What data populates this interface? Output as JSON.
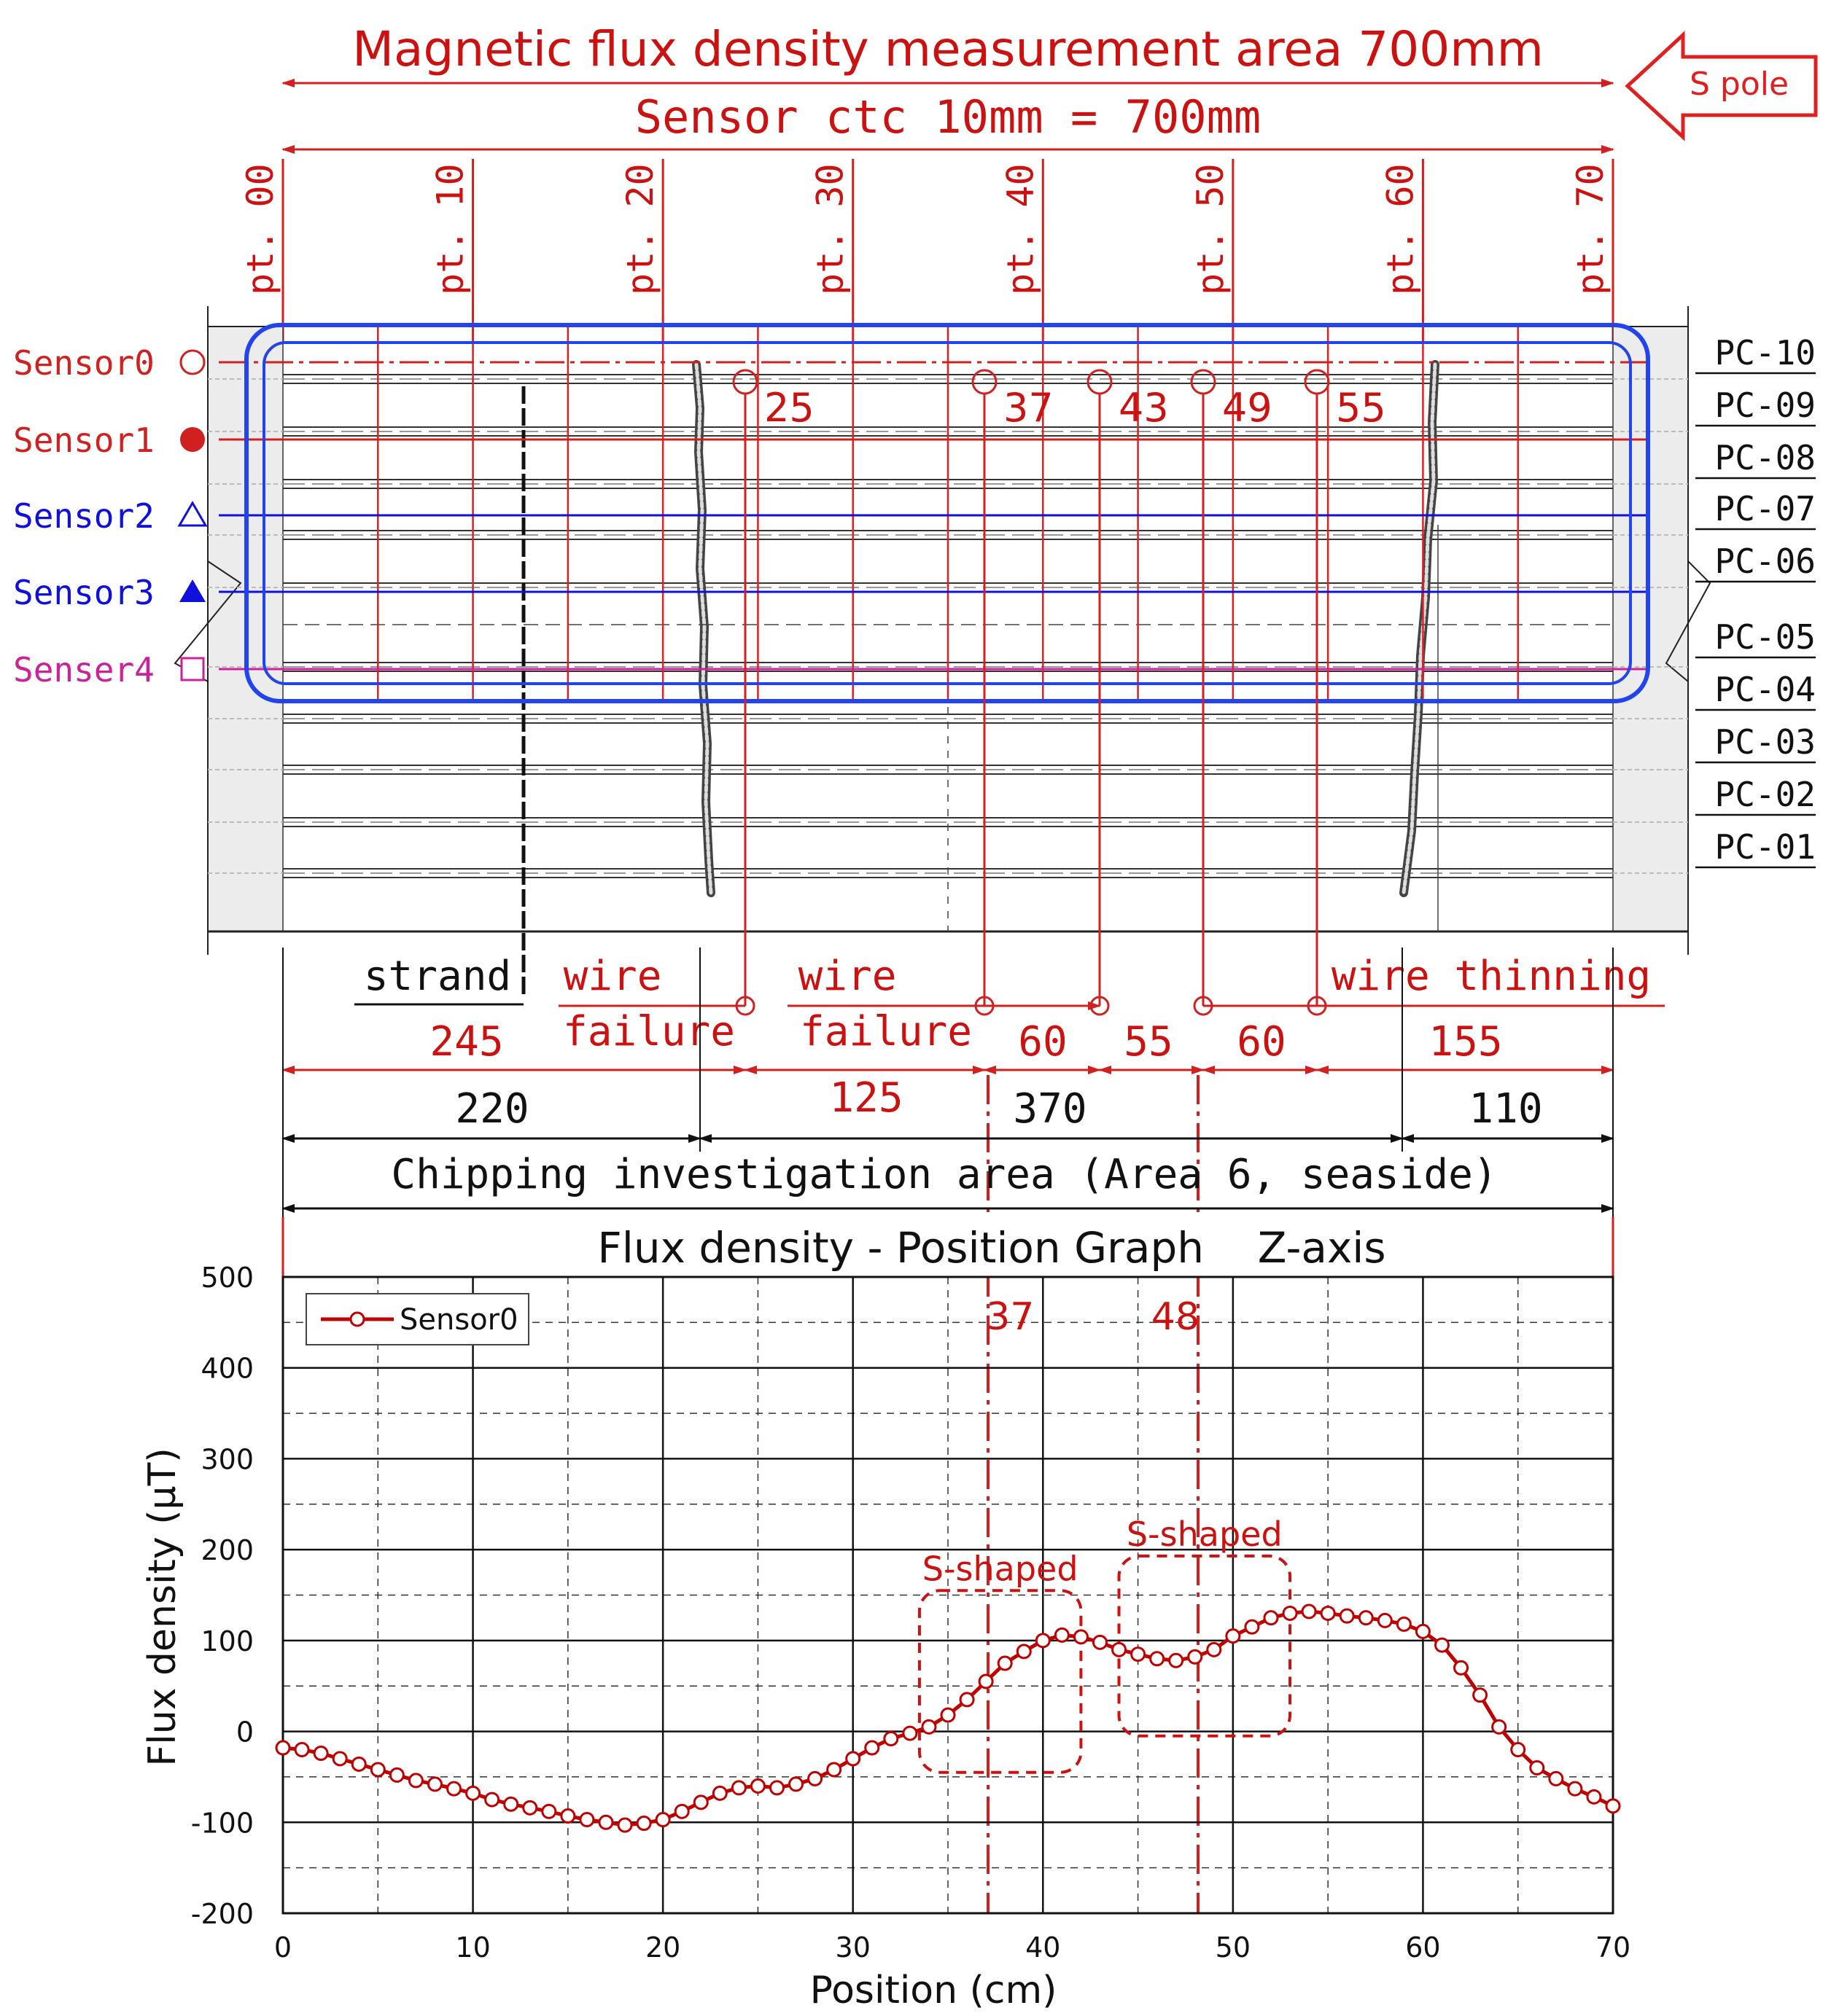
{
  "header": {
    "title": "Magnetic flux density measurement area 700mm",
    "sensor_ctc": "Sensor ctc 10mm = 700mm",
    "pole_label": "S pole"
  },
  "points": [
    "pt. 00",
    "pt. 10",
    "pt. 20",
    "pt. 30",
    "pt. 40",
    "pt. 50",
    "pt. 60",
    "pt. 70"
  ],
  "sensors": [
    {
      "label": "Sensor0",
      "marker": "open-circle",
      "color": "#d02020"
    },
    {
      "label": "Sensor1",
      "marker": "filled-circle",
      "color": "#d02020"
    },
    {
      "label": "Sensor2",
      "marker": "open-triangle",
      "color": "#1010dd"
    },
    {
      "label": "Sensor3",
      "marker": "filled-triangle",
      "color": "#1010dd"
    },
    {
      "label": "Senser4",
      "marker": "open-square",
      "color": "#cc2299"
    }
  ],
  "pc_labels": [
    "PC-10",
    "PC-09",
    "PC-08",
    "PC-07",
    "PC-06",
    "PC-05",
    "PC-04",
    "PC-03",
    "PC-02",
    "PC-01"
  ],
  "defect_markers": [
    "25",
    "37",
    "43",
    "49",
    "55"
  ],
  "annotations": {
    "strand": "strand",
    "wire_failure_1": [
      "wire",
      "failure"
    ],
    "wire_failure_2": [
      "wire",
      "failure"
    ],
    "wire_thinning": "wire thinning"
  },
  "dimensions": {
    "red": [
      "245",
      "125",
      "60",
      "55",
      "60",
      "155"
    ],
    "black": [
      "220",
      "370",
      "110"
    ],
    "area_label": "Chipping investigation area (Area 6, seaside)"
  },
  "chart_data": {
    "type": "line",
    "title": "Flux density - Position Graph    Z-axis",
    "xlabel": "Position (cm)",
    "ylabel": "Flux density (μT)",
    "xlim": [
      0,
      70
    ],
    "ylim": [
      -200,
      500
    ],
    "xticks": [
      0,
      10,
      20,
      30,
      40,
      50,
      60,
      70
    ],
    "yticks": [
      -200,
      -100,
      0,
      100,
      200,
      300,
      400,
      500
    ],
    "grid": true,
    "legend_position": "top-left",
    "series": [
      {
        "name": "Sensor0",
        "color": "#c00000",
        "marker": "open-circle",
        "x": [
          0,
          1,
          2,
          3,
          4,
          5,
          6,
          7,
          8,
          9,
          10,
          11,
          12,
          13,
          14,
          15,
          16,
          17,
          18,
          19,
          20,
          21,
          22,
          23,
          24,
          25,
          26,
          27,
          28,
          29,
          30,
          31,
          32,
          33,
          34,
          35,
          36,
          37,
          38,
          39,
          40,
          41,
          42,
          43,
          44,
          45,
          46,
          47,
          48,
          49,
          50,
          51,
          52,
          53,
          54,
          55,
          56,
          57,
          58,
          59,
          60,
          61,
          62,
          63,
          64,
          65,
          66,
          67,
          68,
          69,
          70
        ],
        "values": [
          -18,
          -20,
          -24,
          -30,
          -36,
          -42,
          -48,
          -54,
          -58,
          -63,
          -68,
          -75,
          -80,
          -84,
          -88,
          -93,
          -97,
          -100,
          -103,
          -101,
          -97,
          -88,
          -78,
          -68,
          -62,
          -60,
          -62,
          -58,
          -52,
          -42,
          -30,
          -18,
          -8,
          -2,
          5,
          18,
          35,
          55,
          75,
          88,
          100,
          106,
          104,
          98,
          90,
          85,
          80,
          78,
          82,
          90,
          105,
          115,
          125,
          130,
          132,
          130,
          127,
          125,
          122,
          118,
          110,
          95,
          70,
          40,
          5,
          -20,
          -40,
          -52,
          -63,
          -72,
          -82
        ]
      }
    ],
    "annotations": {
      "vlines": [
        {
          "x": 37,
          "label": "37"
        },
        {
          "x": 48,
          "label": "48"
        }
      ],
      "regions": [
        {
          "label": "S-shaped",
          "x": [
            33.5,
            42
          ],
          "y": [
            -45,
            155
          ]
        },
        {
          "label": "S-shaped",
          "x": [
            44,
            53
          ],
          "y": [
            -5,
            193
          ]
        }
      ]
    }
  }
}
